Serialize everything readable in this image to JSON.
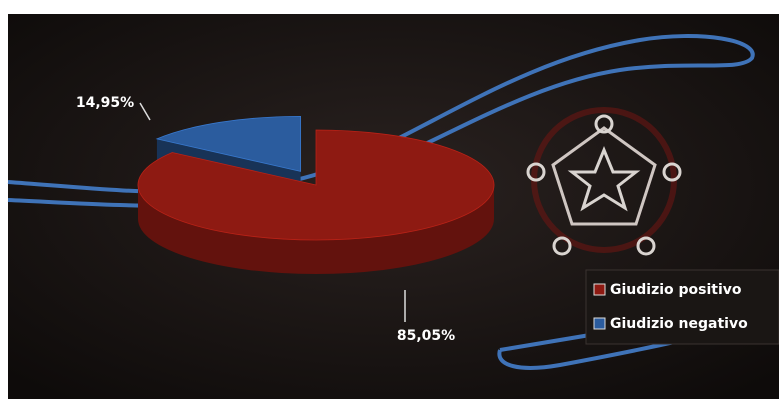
{
  "chart_data": {
    "type": "pie",
    "categories": [
      "Giudizio positivo",
      "Giudizio negativo"
    ],
    "values": [
      85.05,
      14.95
    ],
    "value_labels": [
      "85,05%",
      "14,95%"
    ],
    "colors": [
      "#8e1a12",
      "#2b5c9e"
    ]
  }
}
